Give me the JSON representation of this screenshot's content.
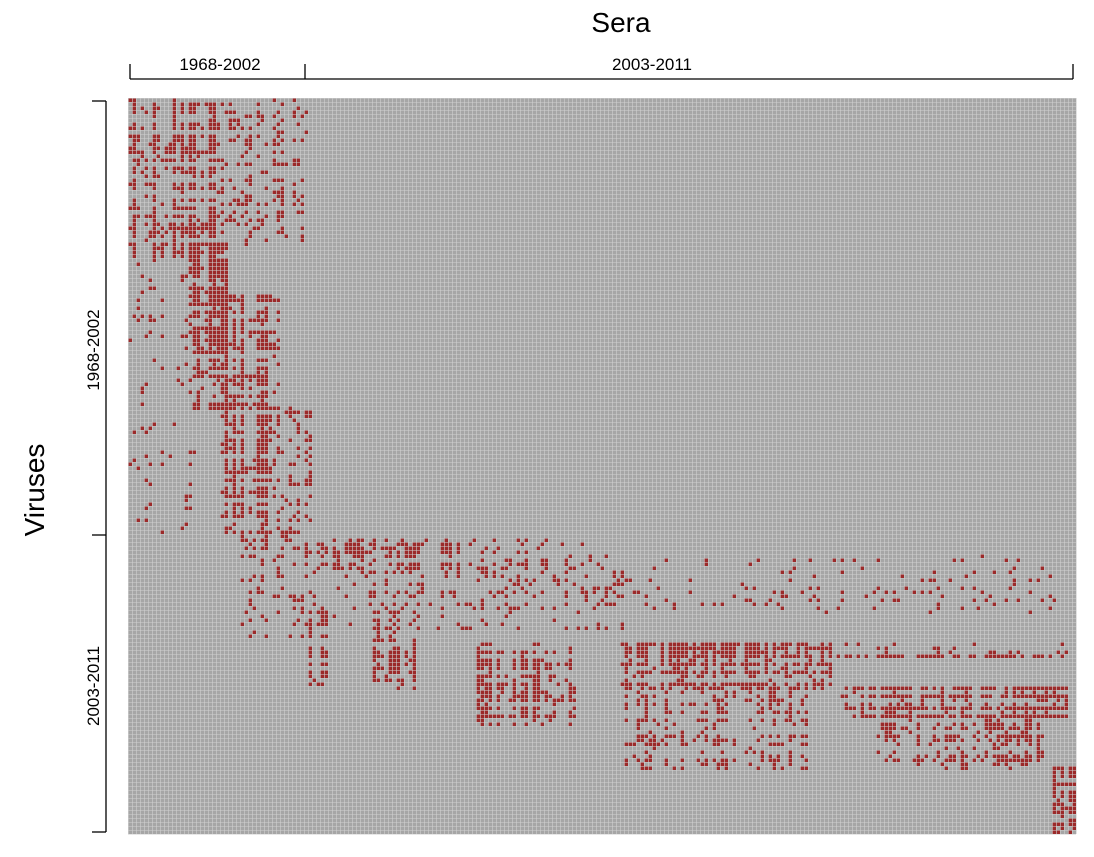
{
  "chart_data": {
    "type": "heatmap",
    "title": "",
    "xlabel": "Sera",
    "ylabel": "Viruses",
    "x_groups": [
      "1968-2002",
      "2003-2011"
    ],
    "y_groups": [
      "1968-2002",
      "2003-2011"
    ],
    "x_group_fractions": [
      0.186,
      0.814
    ],
    "y_group_fractions": [
      0.59,
      0.41
    ],
    "colors": {
      "measured": "#9b2a2a",
      "missing": "#a6a6a6",
      "grid": "#d0d0d0"
    },
    "measured_blocks": [
      {
        "x0": 0.0,
        "x1": 0.09,
        "y0": 0.0,
        "y1": 0.22,
        "density": 0.45
      },
      {
        "x0": 0.09,
        "x1": 0.186,
        "y0": 0.0,
        "y1": 0.2,
        "density": 0.18
      },
      {
        "x0": 0.0,
        "x1": 0.07,
        "y0": 0.22,
        "y1": 0.59,
        "density": 0.06
      },
      {
        "x0": 0.065,
        "x1": 0.105,
        "y0": 0.2,
        "y1": 0.42,
        "density": 0.55
      },
      {
        "x0": 0.1,
        "x1": 0.16,
        "y0": 0.27,
        "y1": 0.59,
        "density": 0.45
      },
      {
        "x0": 0.16,
        "x1": 0.19,
        "y0": 0.42,
        "y1": 0.6,
        "density": 0.2
      },
      {
        "x0": 0.12,
        "x1": 0.19,
        "y0": 0.59,
        "y1": 0.73,
        "density": 0.12
      },
      {
        "x0": 0.186,
        "x1": 0.35,
        "y0": 0.6,
        "y1": 0.64,
        "density": 0.3
      },
      {
        "x0": 0.35,
        "x1": 0.48,
        "y0": 0.6,
        "y1": 0.64,
        "density": 0.15
      },
      {
        "x0": 0.186,
        "x1": 0.52,
        "y0": 0.64,
        "y1": 0.72,
        "density": 0.12
      },
      {
        "x0": 0.19,
        "x1": 0.21,
        "y0": 0.7,
        "y1": 0.8,
        "density": 0.35
      },
      {
        "x0": 0.26,
        "x1": 0.3,
        "y0": 0.7,
        "y1": 0.8,
        "density": 0.35
      },
      {
        "x0": 0.37,
        "x1": 0.47,
        "y0": 0.74,
        "y1": 0.85,
        "density": 0.4
      },
      {
        "x0": 0.52,
        "x1": 0.74,
        "y0": 0.74,
        "y1": 0.8,
        "density": 0.5
      },
      {
        "x0": 0.74,
        "x1": 0.99,
        "y0": 0.74,
        "y1": 0.76,
        "density": 0.3
      },
      {
        "x0": 0.52,
        "x1": 0.72,
        "y0": 0.8,
        "y1": 0.91,
        "density": 0.22
      },
      {
        "x0": 0.75,
        "x1": 0.99,
        "y0": 0.8,
        "y1": 0.84,
        "density": 0.5
      },
      {
        "x0": 0.79,
        "x1": 0.97,
        "y0": 0.84,
        "y1": 0.91,
        "density": 0.3
      },
      {
        "x0": 0.35,
        "x1": 0.98,
        "y0": 0.62,
        "y1": 0.7,
        "density": 0.05
      },
      {
        "x0": 0.975,
        "x1": 1.0,
        "y0": 0.91,
        "y1": 1.0,
        "density": 0.65
      }
    ]
  }
}
